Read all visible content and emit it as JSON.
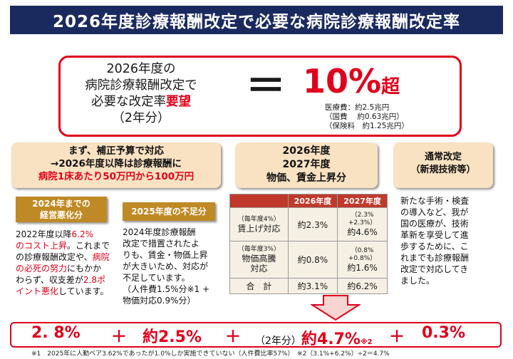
{
  "title": "2026年度診療報酬改定で必要な病院診療報酬改定率",
  "top": {
    "line1": "2026年度の",
    "line2": "病院診療報酬改定で",
    "line3_prefix": "必要な改定率",
    "line3_highlight": "要望",
    "line4": "（2年分）",
    "equals": "＝",
    "rate_num": "10%",
    "rate_suffix": "超",
    "notes": "医療費：約2.5兆円\n（国費　 約0.63兆円）\n（保険料　約1.25兆円）"
  },
  "hdr1": {
    "line1": "まず、補正予算で対応",
    "line2": "→2026年度以降は診療報酬に",
    "line3": "病院1床あたり50万円から100万円"
  },
  "hdr2": {
    "line1": "2026年度",
    "line2": "2027年度",
    "line3": "物価、賃金上昇分"
  },
  "hdr3": {
    "line1": "通常改定",
    "line2": "（新規技術等）"
  },
  "gold1": {
    "line1": "2024年までの",
    "line2": "経営悪化分"
  },
  "gold2": {
    "label": "2025年度の不足分"
  },
  "para1": {
    "a": "2022年度以降",
    "b": "6.2%",
    "c": "\n",
    "d": "のコスト上昇",
    "e": "。これまで\nの診療報酬改定や、",
    "f": "病院",
    "g": "\n",
    "h": "の必死の努力",
    "i": "にもかか\nわらず、収支差が",
    "j": "2.8ポ",
    "k": "\n",
    "l": "イント悪化",
    "m": "しています。"
  },
  "para2": "2024年度診療報酬\n改定で措置されたよ\nりも、賃金・物価上昇\nが大きいため、対応が\n不足しています。\n（人件費1.5%分※1 +\n物価対応0.9%分）",
  "para3": "新たな手術・検査\nの導入など、我が\n国の医療が、技術\n革新を享受して進\n歩するために、こ\nれまでも診療報酬\n改定で対応してき\nました。",
  "table": {
    "headers": [
      "",
      "2026年度",
      "2027年度"
    ],
    "rows": [
      {
        "note": "（毎年度4%）",
        "label": "賃上げ対応",
        "c2026": "約2.3%",
        "c2027_note": "（2.3%\n+2.3%）",
        "c2027": "約4.6%"
      },
      {
        "note": "（毎年度3%）",
        "label": "物価高騰\n対応",
        "c2026": "約0.8%",
        "c2027_note": "（0.8%\n+0.8%）",
        "c2027": "約1.6%"
      },
      {
        "note": "",
        "label": "合　計",
        "c2026": "約3.1%",
        "c2027_note": "",
        "c2027": "約6.2%"
      }
    ]
  },
  "bottom": {
    "t1": "2. 8%",
    "plus1": "＋",
    "t2": "約2.5%",
    "plus2": "＋",
    "t3_pre": "（2年分）",
    "t3": "約4.7%",
    "t3_sup": "※2",
    "plus3": "＋",
    "t4": "0.3%"
  },
  "footnote": "※1　2025年に人勤ベア3.62%であったが1.0%しか実施できていない（人件費比率57%）　※2（3.1%+6.2%）÷2＝4.7%",
  "colors": {
    "title_bg": "#1b2a5e",
    "accent_red": "#e0001b",
    "beige": "#f9e2c2",
    "gold": "#bf8a25"
  }
}
